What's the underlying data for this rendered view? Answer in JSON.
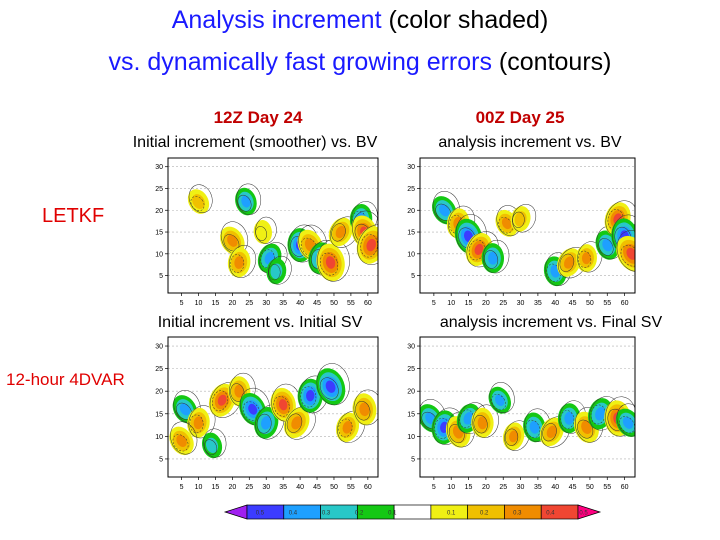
{
  "title": {
    "line1_blue": "Analysis increment",
    "line1_black": " (color shaded)",
    "line2_blue": "vs. dynamically fast growing errors",
    "line2_black": " (contours)"
  },
  "columns": [
    "12Z Day 24",
    "00Z Day 25"
  ],
  "rows": [
    "LETKF",
    "12-hour 4DVAR"
  ],
  "panels": [
    {
      "title": "Initial increment (smoother) vs. BV"
    },
    {
      "title": "analysis increment vs. BV"
    },
    {
      "title": "Initial increment vs. Initial SV"
    },
    {
      "title": "analysis increment vs. Final SV"
    }
  ],
  "chart_data": {
    "type": "heatmap",
    "x_ticks": [
      "5",
      "10",
      "15",
      "20",
      "25",
      "30",
      "35",
      "40",
      "45",
      "50",
      "55",
      "60"
    ],
    "y_ticks": [
      "5",
      "10",
      "15",
      "20",
      "25",
      "30"
    ],
    "xlim": [
      1,
      63
    ],
    "ylim": [
      1,
      32
    ],
    "colorbar": {
      "labels": [
        "0.5",
        "0.4",
        "0.3",
        "0.2",
        "0.1",
        "0.1",
        "0.2",
        "0.3",
        "0.4",
        "0.5"
      ],
      "colors": [
        "#a020f0",
        "#3c3cff",
        "#1ea0ff",
        "#28c8c8",
        "#14c814",
        "#ffffff",
        "#f0f014",
        "#f0c000",
        "#f08c00",
        "#f04632",
        "#ff0080"
      ]
    },
    "shading": [
      [
        {
          "x": 20,
          "y": 13,
          "v": 0.3
        },
        {
          "x": 22,
          "y": 8,
          "v": 0.3
        },
        {
          "x": 24,
          "y": 22,
          "v": -0.25
        },
        {
          "x": 31,
          "y": 9,
          "v": -0.3
        },
        {
          "x": 40,
          "y": 12,
          "v": -0.4
        },
        {
          "x": 43,
          "y": 12,
          "v": 0.35
        },
        {
          "x": 46,
          "y": 9,
          "v": -0.35
        },
        {
          "x": 49,
          "y": 8,
          "v": 0.5
        },
        {
          "x": 52,
          "y": 15,
          "v": 0.3
        },
        {
          "x": 58,
          "y": 18,
          "v": -0.3
        },
        {
          "x": 59,
          "y": 15,
          "v": 0.4
        },
        {
          "x": 61,
          "y": 12,
          "v": 0.5
        },
        {
          "x": 29,
          "y": 15,
          "v": 0.15
        },
        {
          "x": 10,
          "y": 22,
          "v": 0.2
        },
        {
          "x": 33,
          "y": 6,
          "v": -0.2
        }
      ],
      [
        {
          "x": 8,
          "y": 20,
          "v": -0.3
        },
        {
          "x": 12,
          "y": 17,
          "v": 0.3
        },
        {
          "x": 15,
          "y": 14,
          "v": -0.45
        },
        {
          "x": 18,
          "y": 11,
          "v": 0.4
        },
        {
          "x": 22,
          "y": 9,
          "v": -0.3
        },
        {
          "x": 26,
          "y": 17,
          "v": 0.25
        },
        {
          "x": 30,
          "y": 18,
          "v": 0.2
        },
        {
          "x": 40,
          "y": 6,
          "v": -0.3
        },
        {
          "x": 44,
          "y": 8,
          "v": 0.3
        },
        {
          "x": 49,
          "y": 9,
          "v": 0.25
        },
        {
          "x": 55,
          "y": 12,
          "v": -0.3
        },
        {
          "x": 58,
          "y": 18,
          "v": 0.4
        },
        {
          "x": 60,
          "y": 14,
          "v": -0.45
        },
        {
          "x": 62,
          "y": 10,
          "v": 0.5
        }
      ],
      [
        {
          "x": 6,
          "y": 16,
          "v": -0.3
        },
        {
          "x": 10,
          "y": 13,
          "v": 0.3
        },
        {
          "x": 14,
          "y": 8,
          "v": -0.2
        },
        {
          "x": 17,
          "y": 18,
          "v": 0.4
        },
        {
          "x": 22,
          "y": 20,
          "v": 0.3
        },
        {
          "x": 26,
          "y": 16,
          "v": -0.4
        },
        {
          "x": 30,
          "y": 13,
          "v": -0.35
        },
        {
          "x": 35,
          "y": 17,
          "v": 0.4
        },
        {
          "x": 39,
          "y": 13,
          "v": 0.35
        },
        {
          "x": 43,
          "y": 19,
          "v": -0.4
        },
        {
          "x": 49,
          "y": 21,
          "v": -0.5
        },
        {
          "x": 54,
          "y": 12,
          "v": 0.3
        },
        {
          "x": 59,
          "y": 16,
          "v": 0.35
        },
        {
          "x": 5,
          "y": 9,
          "v": 0.3
        }
      ],
      [
        {
          "x": 4,
          "y": 14,
          "v": -0.3
        },
        {
          "x": 8,
          "y": 12,
          "v": -0.4
        },
        {
          "x": 12,
          "y": 11,
          "v": 0.35
        },
        {
          "x": 15,
          "y": 14,
          "v": -0.3
        },
        {
          "x": 19,
          "y": 13,
          "v": 0.3
        },
        {
          "x": 24,
          "y": 18,
          "v": -0.25
        },
        {
          "x": 28,
          "y": 10,
          "v": 0.25
        },
        {
          "x": 34,
          "y": 12,
          "v": -0.3
        },
        {
          "x": 39,
          "y": 11,
          "v": 0.3
        },
        {
          "x": 44,
          "y": 14,
          "v": -0.3
        },
        {
          "x": 49,
          "y": 12,
          "v": 0.35
        },
        {
          "x": 53,
          "y": 15,
          "v": -0.35
        },
        {
          "x": 58,
          "y": 14,
          "v": 0.45
        },
        {
          "x": 61,
          "y": 13,
          "v": -0.3
        }
      ]
    ]
  }
}
